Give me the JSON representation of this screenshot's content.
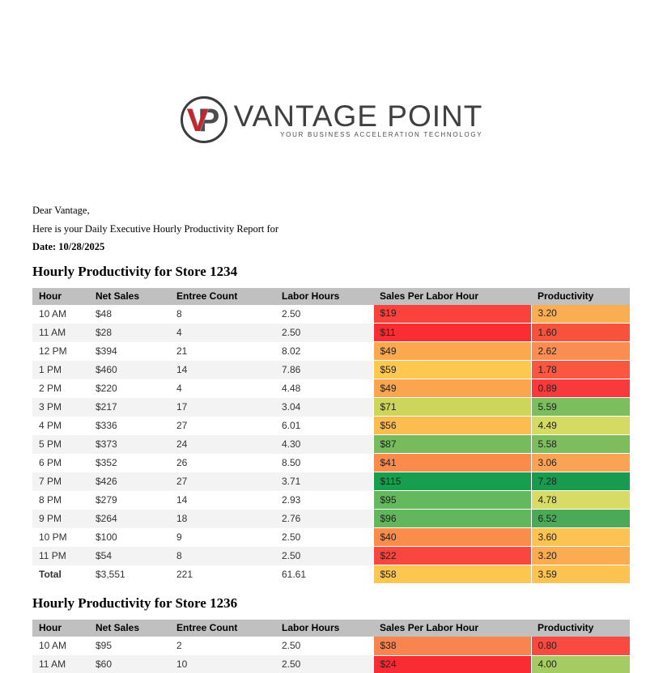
{
  "logo": {
    "monogram_v": "V",
    "monogram_p": "P",
    "wordmark": "VANTAGE POINT",
    "tagline": "YOUR BUSINESS ACCELERATION TECHNOLOGY",
    "accent_red": "#c1272d",
    "dark_gray": "#3f3f41"
  },
  "greeting": {
    "line1": "Dear Vantage,",
    "line2": "Here is your Daily Executive Hourly Productivity Report for",
    "line3": "Date: 10/28/2025"
  },
  "theme": {
    "header_bg": "#c0c0c0",
    "stripe_bg": "#f3f3f3",
    "scale_min_color": "#f92d32",
    "scale_mid_color": "#fcc850",
    "scale_max_color": "#179e4f"
  },
  "tables": [
    {
      "title": "Hourly Productivity for Store 1234",
      "columns": [
        "Hour",
        "Net Sales",
        "Entree Count",
        "Labor Hours",
        "Sales Per Labor Hour",
        "Productivity"
      ],
      "rows": [
        {
          "cells": [
            "10 AM",
            "$48",
            "8",
            "2.50",
            "$19",
            "3.20"
          ],
          "splh_color": "#f9423c",
          "prod_color": "#fbad52",
          "bold": false
        },
        {
          "cells": [
            "11 AM",
            "$28",
            "4",
            "2.50",
            "$11",
            "1.60"
          ],
          "splh_color": "#f92d32",
          "prod_color": "#f9523c",
          "bold": false
        },
        {
          "cells": [
            "12 PM",
            "$394",
            "21",
            "8.02",
            "$49",
            "2.62"
          ],
          "splh_color": "#fba84e",
          "prod_color": "#fa8e52",
          "bold": false
        },
        {
          "cells": [
            "1 PM",
            "$460",
            "14",
            "7.86",
            "$59",
            "1.78"
          ],
          "splh_color": "#fcc850",
          "prod_color": "#f95740",
          "bold": false
        },
        {
          "cells": [
            "2 PM",
            "$220",
            "4",
            "4.48",
            "$49",
            "0.89"
          ],
          "splh_color": "#fba64e",
          "prod_color": "#f83a3c",
          "bold": false
        },
        {
          "cells": [
            "3 PM",
            "$217",
            "17",
            "3.04",
            "$71",
            "5.59"
          ],
          "splh_color": "#cdd65b",
          "prod_color": "#7cbd5e",
          "bold": false
        },
        {
          "cells": [
            "4 PM",
            "$336",
            "27",
            "6.01",
            "$56",
            "4.49"
          ],
          "splh_color": "#fcbd50",
          "prod_color": "#d4da62",
          "bold": false
        },
        {
          "cells": [
            "5 PM",
            "$373",
            "24",
            "4.30",
            "$87",
            "5.58"
          ],
          "splh_color": "#77bb5d",
          "prod_color": "#7dbd5e",
          "bold": false
        },
        {
          "cells": [
            "6 PM",
            "$352",
            "26",
            "8.50",
            "$41",
            "3.06"
          ],
          "splh_color": "#fa8b4c",
          "prod_color": "#fba354",
          "bold": false
        },
        {
          "cells": [
            "7 PM",
            "$426",
            "27",
            "3.71",
            "$115",
            "7.28"
          ],
          "splh_color": "#179e4f",
          "prod_color": "#189b4e",
          "bold": false
        },
        {
          "cells": [
            "8 PM",
            "$279",
            "14",
            "2.93",
            "$95",
            "4.78"
          ],
          "splh_color": "#64b85d",
          "prod_color": "#d8dc66",
          "bold": false
        },
        {
          "cells": [
            "9 PM",
            "$264",
            "18",
            "2.76",
            "$96",
            "6.52"
          ],
          "splh_color": "#62b75d",
          "prod_color": "#4aaa57",
          "bold": false
        },
        {
          "cells": [
            "10 PM",
            "$100",
            "9",
            "2.50",
            "$40",
            "3.60"
          ],
          "splh_color": "#fa8d4c",
          "prod_color": "#fcc353",
          "bold": false
        },
        {
          "cells": [
            "11 PM",
            "$54",
            "8",
            "2.50",
            "$22",
            "3.20"
          ],
          "splh_color": "#f9463e",
          "prod_color": "#fbab50",
          "bold": false
        },
        {
          "cells": [
            "Total",
            "$3,551",
            "221",
            "61.61",
            "$58",
            "3.59"
          ],
          "splh_color": "#fcc751",
          "prod_color": "#fcc353",
          "bold": true
        }
      ]
    },
    {
      "title": "Hourly Productivity for Store 1236",
      "columns": [
        "Hour",
        "Net Sales",
        "Entree Count",
        "Labor Hours",
        "Sales Per Labor Hour",
        "Productivity"
      ],
      "rows": [
        {
          "cells": [
            "10 AM",
            "$95",
            "2",
            "2.50",
            "$38",
            "0.80"
          ],
          "splh_color": "#fa8450",
          "prod_color": "#f84a40",
          "bold": false
        },
        {
          "cells": [
            "11 AM",
            "$60",
            "10",
            "2.50",
            "$24",
            "4.00"
          ],
          "splh_color": "#f92b33",
          "prod_color": "#a4cc62",
          "bold": false
        }
      ]
    }
  ]
}
